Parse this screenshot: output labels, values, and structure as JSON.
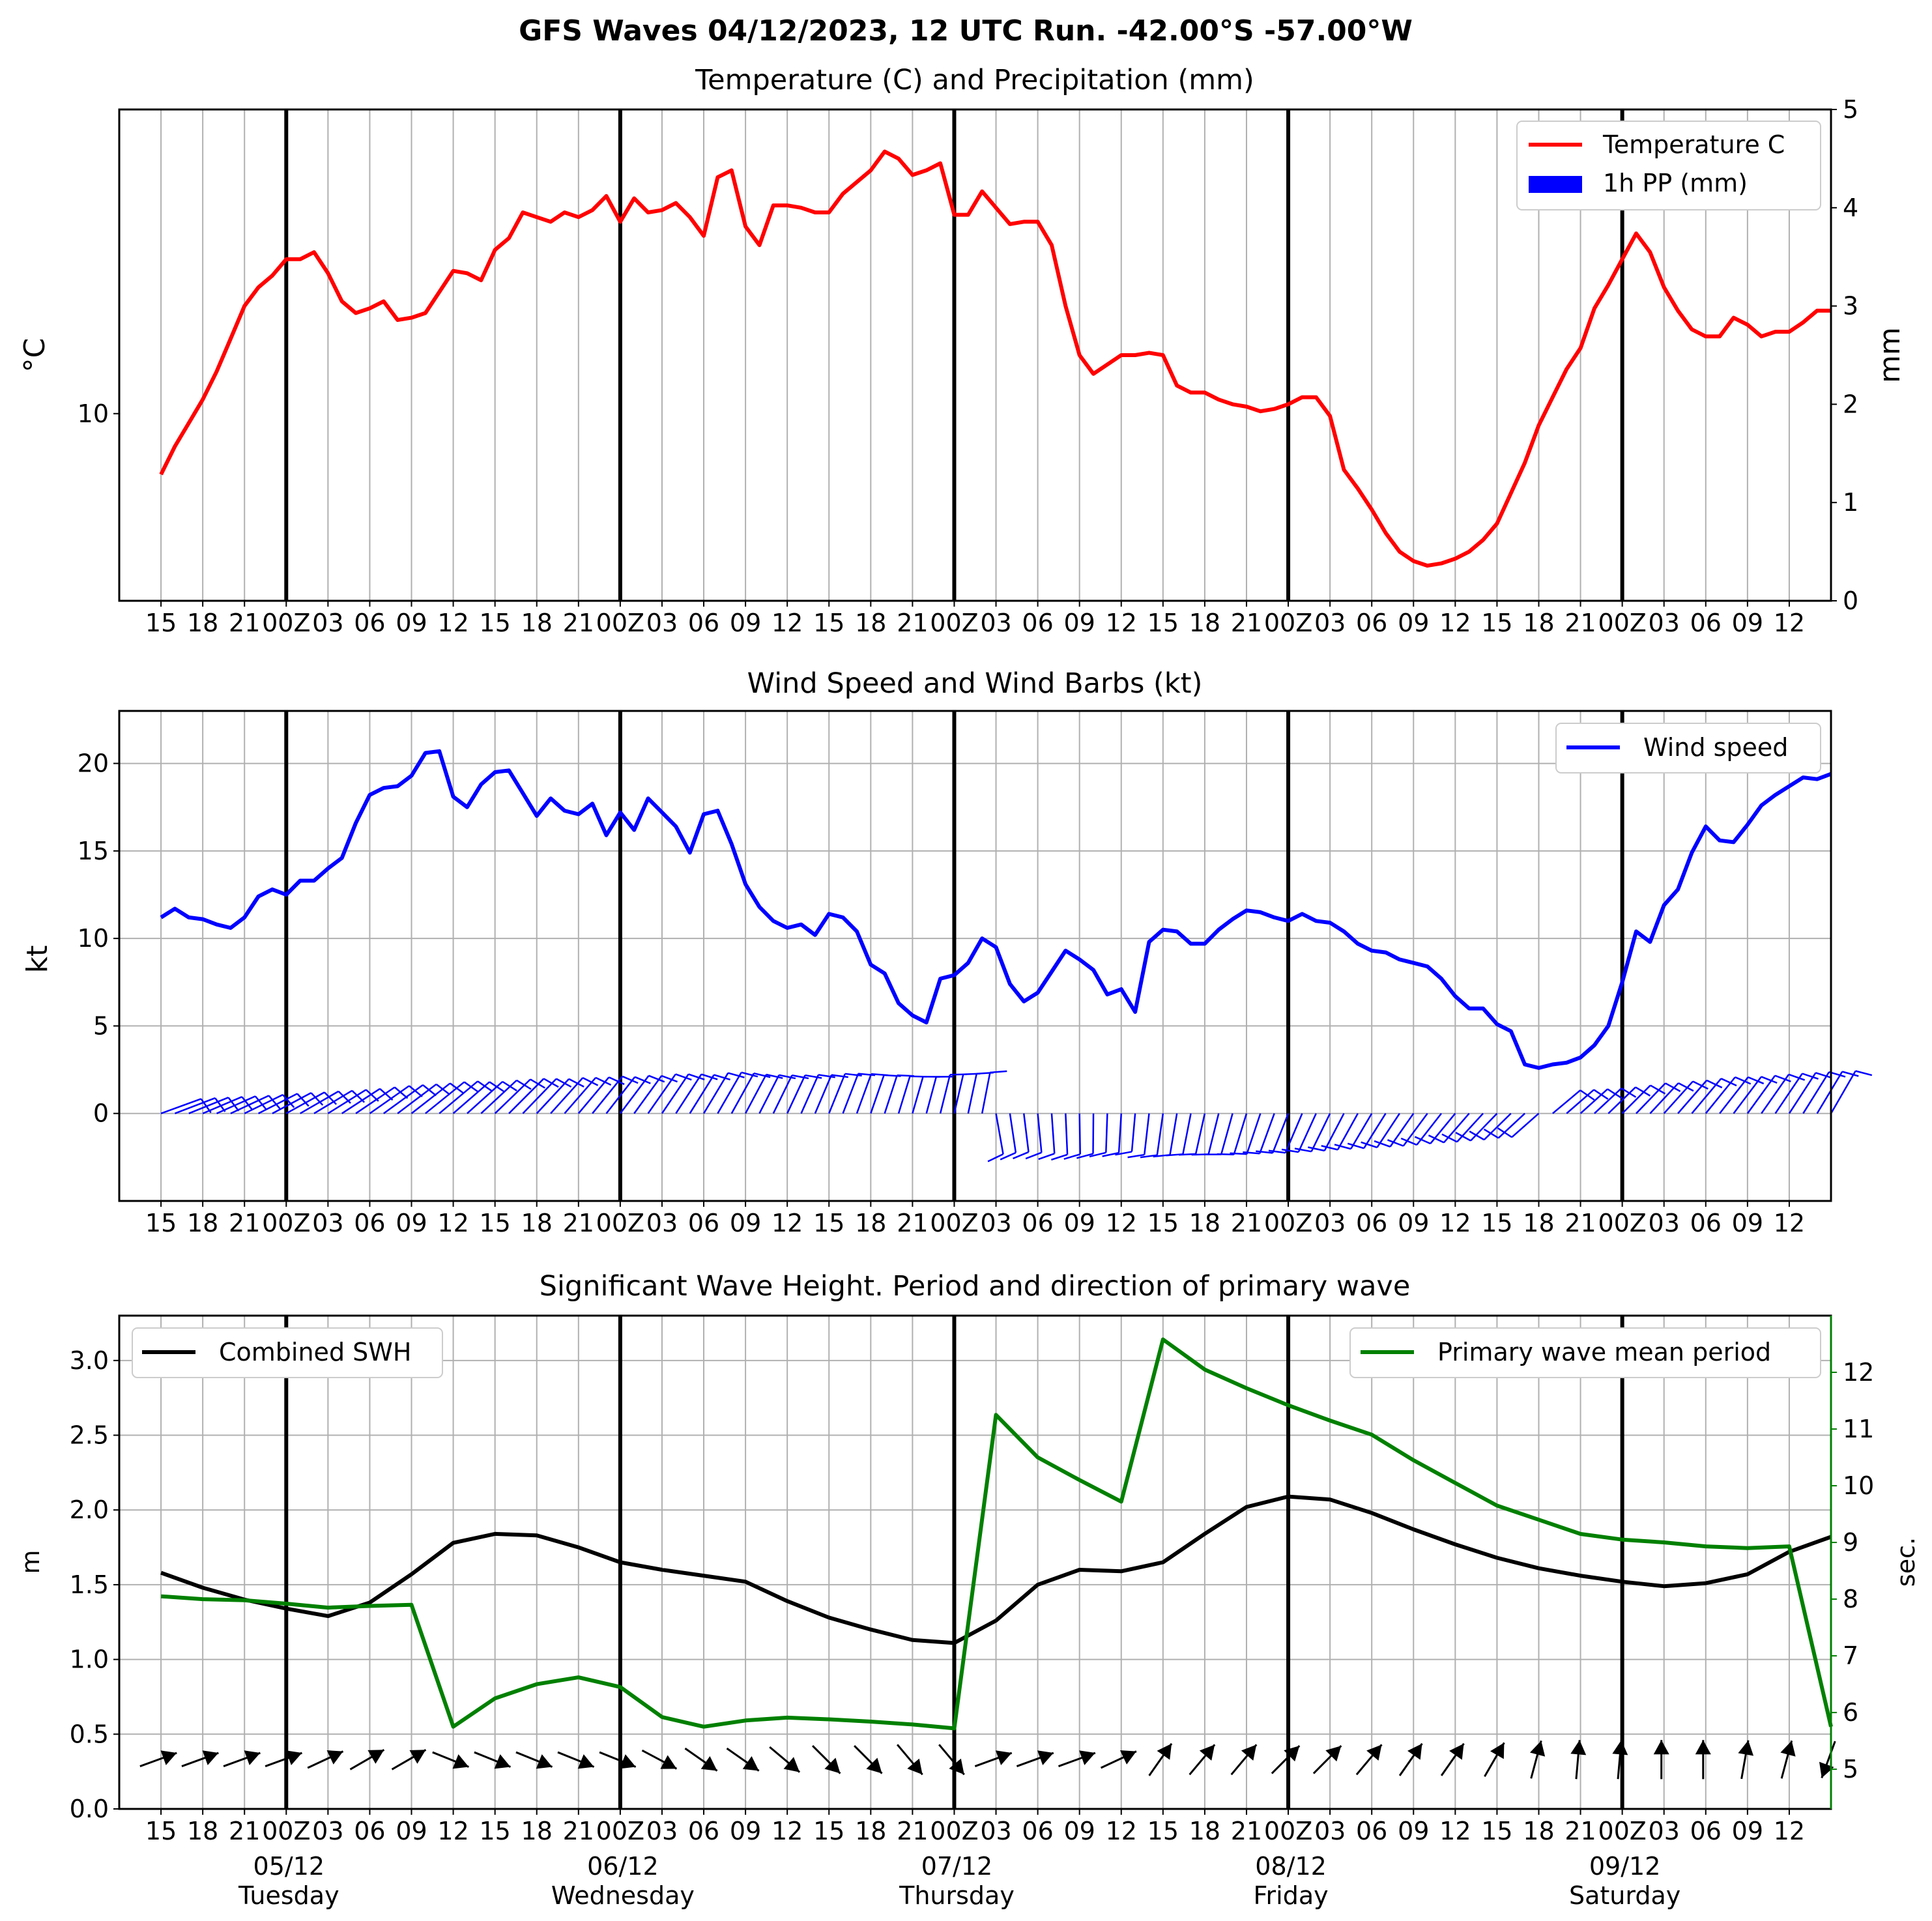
{
  "suptitle": "GFS Waves 04/12/2023, 12 UTC Run. -42.00°S -57.00°W",
  "colors": {
    "temperature": "#ff0000",
    "precip": "#0000ff",
    "wind": "#0000ff",
    "swh": "#000000",
    "period": "#008000",
    "grid": "#b0b0b0",
    "daybreak": "#000000"
  },
  "time_axis": {
    "tick_labels": [
      "15",
      "18",
      "21",
      "00Z",
      "03",
      "06",
      "09",
      "12",
      "15",
      "18",
      "21",
      "00Z",
      "03",
      "06",
      "09",
      "12",
      "15",
      "18",
      "21",
      "00Z",
      "03",
      "06",
      "09",
      "12",
      "15",
      "18",
      "21",
      "00Z",
      "03",
      "06",
      "09",
      "12",
      "15",
      "18",
      "21",
      "00Z",
      "03",
      "06",
      "09",
      "12"
    ],
    "day_labels": [
      {
        "date": "05/12",
        "weekday": "Tuesday"
      },
      {
        "date": "06/12",
        "weekday": "Wednesday"
      },
      {
        "date": "07/12",
        "weekday": "Thursday"
      },
      {
        "date": "08/12",
        "weekday": "Friday"
      },
      {
        "date": "09/12",
        "weekday": "Saturday"
      }
    ]
  },
  "chart_data": [
    {
      "type": "line",
      "title": "Temperature (C) and Precipitation (mm)",
      "ylabel": "°C",
      "ylabel_right": "mm",
      "ylim": [
        6.0,
        16.5
      ],
      "y_ticks": [
        10
      ],
      "ylim_right": [
        0,
        5
      ],
      "y_ticks_right": [
        0,
        1,
        2,
        3,
        4,
        5
      ],
      "legend_position": "top-right",
      "legend": [
        "Temperature C",
        "1h PP (mm)"
      ],
      "x_hours_from_run_start": [
        0,
        1,
        2,
        3,
        4,
        5,
        6,
        7,
        8,
        9,
        10,
        11,
        12,
        13,
        14,
        15,
        16,
        17,
        18,
        19,
        20,
        21,
        22,
        23,
        24,
        25,
        26,
        27,
        28,
        29,
        30,
        31,
        32,
        33,
        34,
        35,
        36,
        37,
        38,
        39,
        40,
        41,
        42,
        43,
        44,
        45,
        46,
        47,
        48,
        49,
        50,
        51,
        52,
        53,
        54,
        55,
        56,
        57,
        58,
        59,
        60,
        61,
        62,
        63,
        64,
        65,
        66,
        67,
        68,
        69,
        70,
        71,
        72,
        73,
        74,
        75,
        76,
        77,
        78,
        79,
        80,
        81,
        82,
        83,
        84,
        85,
        86,
        87,
        88,
        89,
        90,
        91,
        92,
        93,
        94,
        95,
        96,
        97,
        98,
        99,
        100,
        101,
        102,
        103,
        104,
        105,
        106,
        107,
        108,
        109,
        110,
        111,
        112,
        113,
        114,
        115,
        116,
        117,
        118,
        119,
        120
      ],
      "series": [
        {
          "name": "Temperature C",
          "values": [
            8.7,
            9.3,
            9.8,
            10.3,
            10.9,
            11.6,
            12.3,
            12.7,
            12.95,
            13.3,
            13.3,
            13.45,
            13.0,
            12.4,
            12.15,
            12.25,
            12.4,
            12.0,
            12.05,
            12.15,
            12.6,
            13.05,
            13.0,
            12.85,
            13.5,
            13.75,
            14.3,
            14.2,
            14.1,
            14.3,
            14.2,
            14.35,
            14.65,
            14.1,
            14.6,
            14.3,
            14.35,
            14.5,
            14.2,
            13.8,
            15.05,
            15.2,
            14.0,
            13.6,
            14.45,
            14.45,
            14.4,
            14.3,
            14.3,
            14.7,
            14.95,
            15.2,
            15.6,
            15.45,
            15.1,
            15.2,
            15.35,
            14.25,
            14.25,
            14.75,
            14.4,
            14.05,
            14.1,
            14.1,
            13.6,
            12.3,
            11.25,
            10.85,
            11.05,
            11.25,
            11.25,
            11.3,
            11.25,
            10.6,
            10.45,
            10.45,
            10.3,
            10.2,
            10.15,
            10.05,
            10.1,
            10.2,
            10.35,
            10.35,
            9.95,
            8.8,
            8.4,
            7.95,
            7.45,
            7.05,
            6.85,
            6.75,
            6.8,
            6.9,
            7.05,
            7.3,
            7.65,
            8.3,
            8.95,
            9.75,
            10.35,
            10.95,
            11.4,
            12.25,
            12.75,
            13.3,
            13.85,
            13.45,
            12.7,
            12.2,
            11.8,
            11.65,
            11.65,
            12.05,
            11.9,
            11.65,
            11.75,
            11.75,
            11.95,
            12.2,
            12.2,
            12.45
          ]
        },
        {
          "name": "1h PP (mm)",
          "values": []
        }
      ]
    },
    {
      "type": "line",
      "title": "Wind Speed and Wind Barbs (kt)",
      "ylabel": "kt",
      "ylim": [
        -5,
        23
      ],
      "y_ticks": [
        0,
        5,
        10,
        15,
        20
      ],
      "legend_position": "top-right",
      "legend": [
        "Wind speed"
      ],
      "x_hours_from_run_start": [
        0,
        1,
        2,
        3,
        4,
        5,
        6,
        7,
        8,
        9,
        10,
        11,
        12,
        13,
        14,
        15,
        16,
        17,
        18,
        19,
        20,
        21,
        22,
        23,
        24,
        25,
        26,
        27,
        28,
        29,
        30,
        31,
        32,
        33,
        34,
        35,
        36,
        37,
        38,
        39,
        40,
        41,
        42,
        43,
        44,
        45,
        46,
        47,
        48,
        49,
        50,
        51,
        52,
        53,
        54,
        55,
        56,
        57,
        58,
        59,
        60,
        61,
        62,
        63,
        64,
        65,
        66,
        67,
        68,
        69,
        70,
        71,
        72,
        73,
        74,
        75,
        76,
        77,
        78,
        79,
        80,
        81,
        82,
        83,
        84,
        85,
        86,
        87,
        88,
        89,
        90,
        91,
        92,
        93,
        94,
        95,
        96,
        97,
        98,
        99,
        100,
        101,
        102,
        103,
        104,
        105,
        106,
        107,
        108,
        109,
        110,
        111,
        112,
        113,
        114,
        115,
        116,
        117,
        118,
        119,
        120
      ],
      "series": [
        {
          "name": "Wind speed",
          "values": [
            11.2,
            11.7,
            11.2,
            11.1,
            10.8,
            10.6,
            11.2,
            12.4,
            12.8,
            12.5,
            13.3,
            13.3,
            14.0,
            14.6,
            16.6,
            18.2,
            18.6,
            18.7,
            19.3,
            20.6,
            20.7,
            18.1,
            17.5,
            18.8,
            19.5,
            19.6,
            18.3,
            17.0,
            18.0,
            17.3,
            17.1,
            17.7,
            15.9,
            17.2,
            16.2,
            18.0,
            17.2,
            16.4,
            14.9,
            17.1,
            17.3,
            15.4,
            13.1,
            11.8,
            11.0,
            10.6,
            10.8,
            10.2,
            11.4,
            11.2,
            10.4,
            8.5,
            8.0,
            6.3,
            5.6,
            5.2,
            7.7,
            7.9,
            8.6,
            10.0,
            9.5,
            7.4,
            6.4,
            6.9,
            8.1,
            9.3,
            8.8,
            8.2,
            6.8,
            7.1,
            5.8,
            9.8,
            10.5,
            10.4,
            9.7,
            9.7,
            10.5,
            11.1,
            11.6,
            11.5,
            11.2,
            11.0,
            11.4,
            11.0,
            10.9,
            10.4,
            9.7,
            9.3,
            9.2,
            8.8,
            8.6,
            8.4,
            7.7,
            6.7,
            6.0,
            6.0,
            5.1,
            4.7,
            2.8,
            2.6,
            2.8,
            2.9,
            3.2,
            3.9,
            5.0,
            7.5,
            10.4,
            9.8,
            11.9,
            12.8,
            14.9,
            16.4,
            15.6,
            15.5,
            16.5,
            17.6,
            18.2,
            18.7,
            19.2,
            19.1,
            19.4
          ]
        }
      ],
      "barb_direction_label": "wind barbs along 0 kt line"
    },
    {
      "type": "line",
      "title": "Significant Wave Height. Period and direction of primary wave",
      "ylabel": "m",
      "ylabel_right": "sec.",
      "ylim": [
        0.0,
        3.3
      ],
      "y_ticks": [
        0.0,
        0.5,
        1.0,
        1.5,
        2.0,
        2.5,
        3.0
      ],
      "ylim_right": [
        4.3,
        13.0
      ],
      "y_ticks_right": [
        5,
        6,
        7,
        8,
        9,
        10,
        11,
        12
      ],
      "legend_left": [
        "Combined SWH"
      ],
      "legend_left_position": "top-left",
      "legend_right": [
        "Primary wave mean period"
      ],
      "legend_right_position": "top-right",
      "x_hours_from_run_start": [
        0,
        3,
        6,
        9,
        12,
        15,
        18,
        21,
        24,
        27,
        30,
        33,
        36,
        39,
        42,
        45,
        48,
        51,
        54,
        57,
        60,
        63,
        66,
        69,
        72,
        75,
        78,
        81,
        84,
        87,
        90,
        93,
        96,
        99,
        102,
        105,
        108,
        111,
        114,
        117,
        120
      ],
      "series": [
        {
          "name": "Combined SWH",
          "values": [
            1.58,
            1.48,
            1.4,
            1.34,
            1.29,
            1.38,
            1.57,
            1.78,
            1.84,
            1.83,
            1.75,
            1.65,
            1.6,
            1.56,
            1.52,
            1.39,
            1.28,
            1.2,
            1.13,
            1.11,
            1.26,
            1.5,
            1.6,
            1.59,
            1.65,
            1.84,
            2.02,
            2.09,
            2.07,
            1.98,
            1.87,
            1.77,
            1.68,
            1.61,
            1.56,
            1.52,
            1.49,
            1.51,
            1.57,
            1.72,
            1.82
          ]
        },
        {
          "name": "Primary wave mean period",
          "values": [
            8.05,
            8.0,
            7.98,
            7.92,
            7.85,
            7.88,
            7.9,
            5.75,
            6.25,
            6.5,
            6.62,
            6.45,
            5.92,
            5.75,
            5.86,
            5.91,
            5.88,
            5.84,
            5.79,
            5.72,
            11.25,
            10.5,
            10.1,
            9.72,
            12.58,
            12.05,
            11.72,
            11.42,
            11.15,
            10.9,
            10.45,
            10.05,
            9.65,
            9.4,
            9.15,
            9.05,
            9.0,
            8.93,
            8.9,
            8.93,
            5.75
          ]
        }
      ],
      "wave_direction_arrows_deg_to": [
        70,
        70,
        70,
        70,
        65,
        60,
        60,
        112,
        112,
        112,
        112,
        112,
        118,
        125,
        125,
        130,
        135,
        135,
        140,
        140,
        70,
        70,
        70,
        65,
        35,
        40,
        40,
        45,
        45,
        40,
        35,
        35,
        30,
        15,
        5,
        5,
        0,
        0,
        10,
        15,
        200
      ]
    }
  ]
}
